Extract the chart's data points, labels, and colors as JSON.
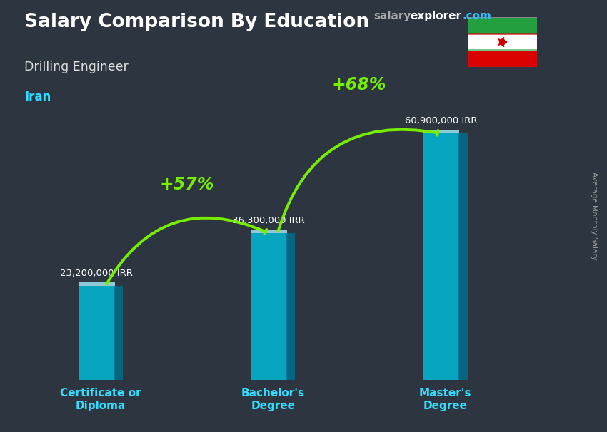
{
  "title": "Salary Comparison By Education",
  "subtitle": "Drilling Engineer",
  "country": "Iran",
  "watermark_salary": "salary",
  "watermark_explorer": "explorer",
  "watermark_dotcom": ".com",
  "ylabel_rotated": "Average Monthly Salary",
  "categories": [
    "Certificate or\nDiploma",
    "Bachelor's\nDegree",
    "Master's\nDegree"
  ],
  "values": [
    23200000,
    36300000,
    60900000
  ],
  "value_labels": [
    "23,200,000 IRR",
    "36,300,000 IRR",
    "60,900,000 IRR"
  ],
  "pct_labels": [
    "+57%",
    "+68%"
  ],
  "bar_color_main": "#00bfdf",
  "bar_color_right": "#007090",
  "bar_color_top": "#aaeeff",
  "bar_alpha": 0.82,
  "bar_width": 0.28,
  "bg_color": "#2d3540",
  "title_color": "#ffffff",
  "subtitle_color": "#dddddd",
  "country_color": "#33ddff",
  "value_label_color": "#ffffff",
  "pct_color": "#77ee00",
  "arrow_color": "#77ee00",
  "xtick_color": "#33ddff",
  "fig_width": 8.5,
  "fig_height": 6.06,
  "ylim_max": 80000000,
  "bar_positions": [
    1.0,
    2.1,
    3.2
  ],
  "iran_flag_green": "#239f40",
  "iran_flag_white": "#ffffff",
  "iran_flag_red": "#da0000",
  "wm_salary_color": "#aaaaaa",
  "wm_explorer_color": "#ffffff",
  "wm_dotcom_color": "#33bbff"
}
